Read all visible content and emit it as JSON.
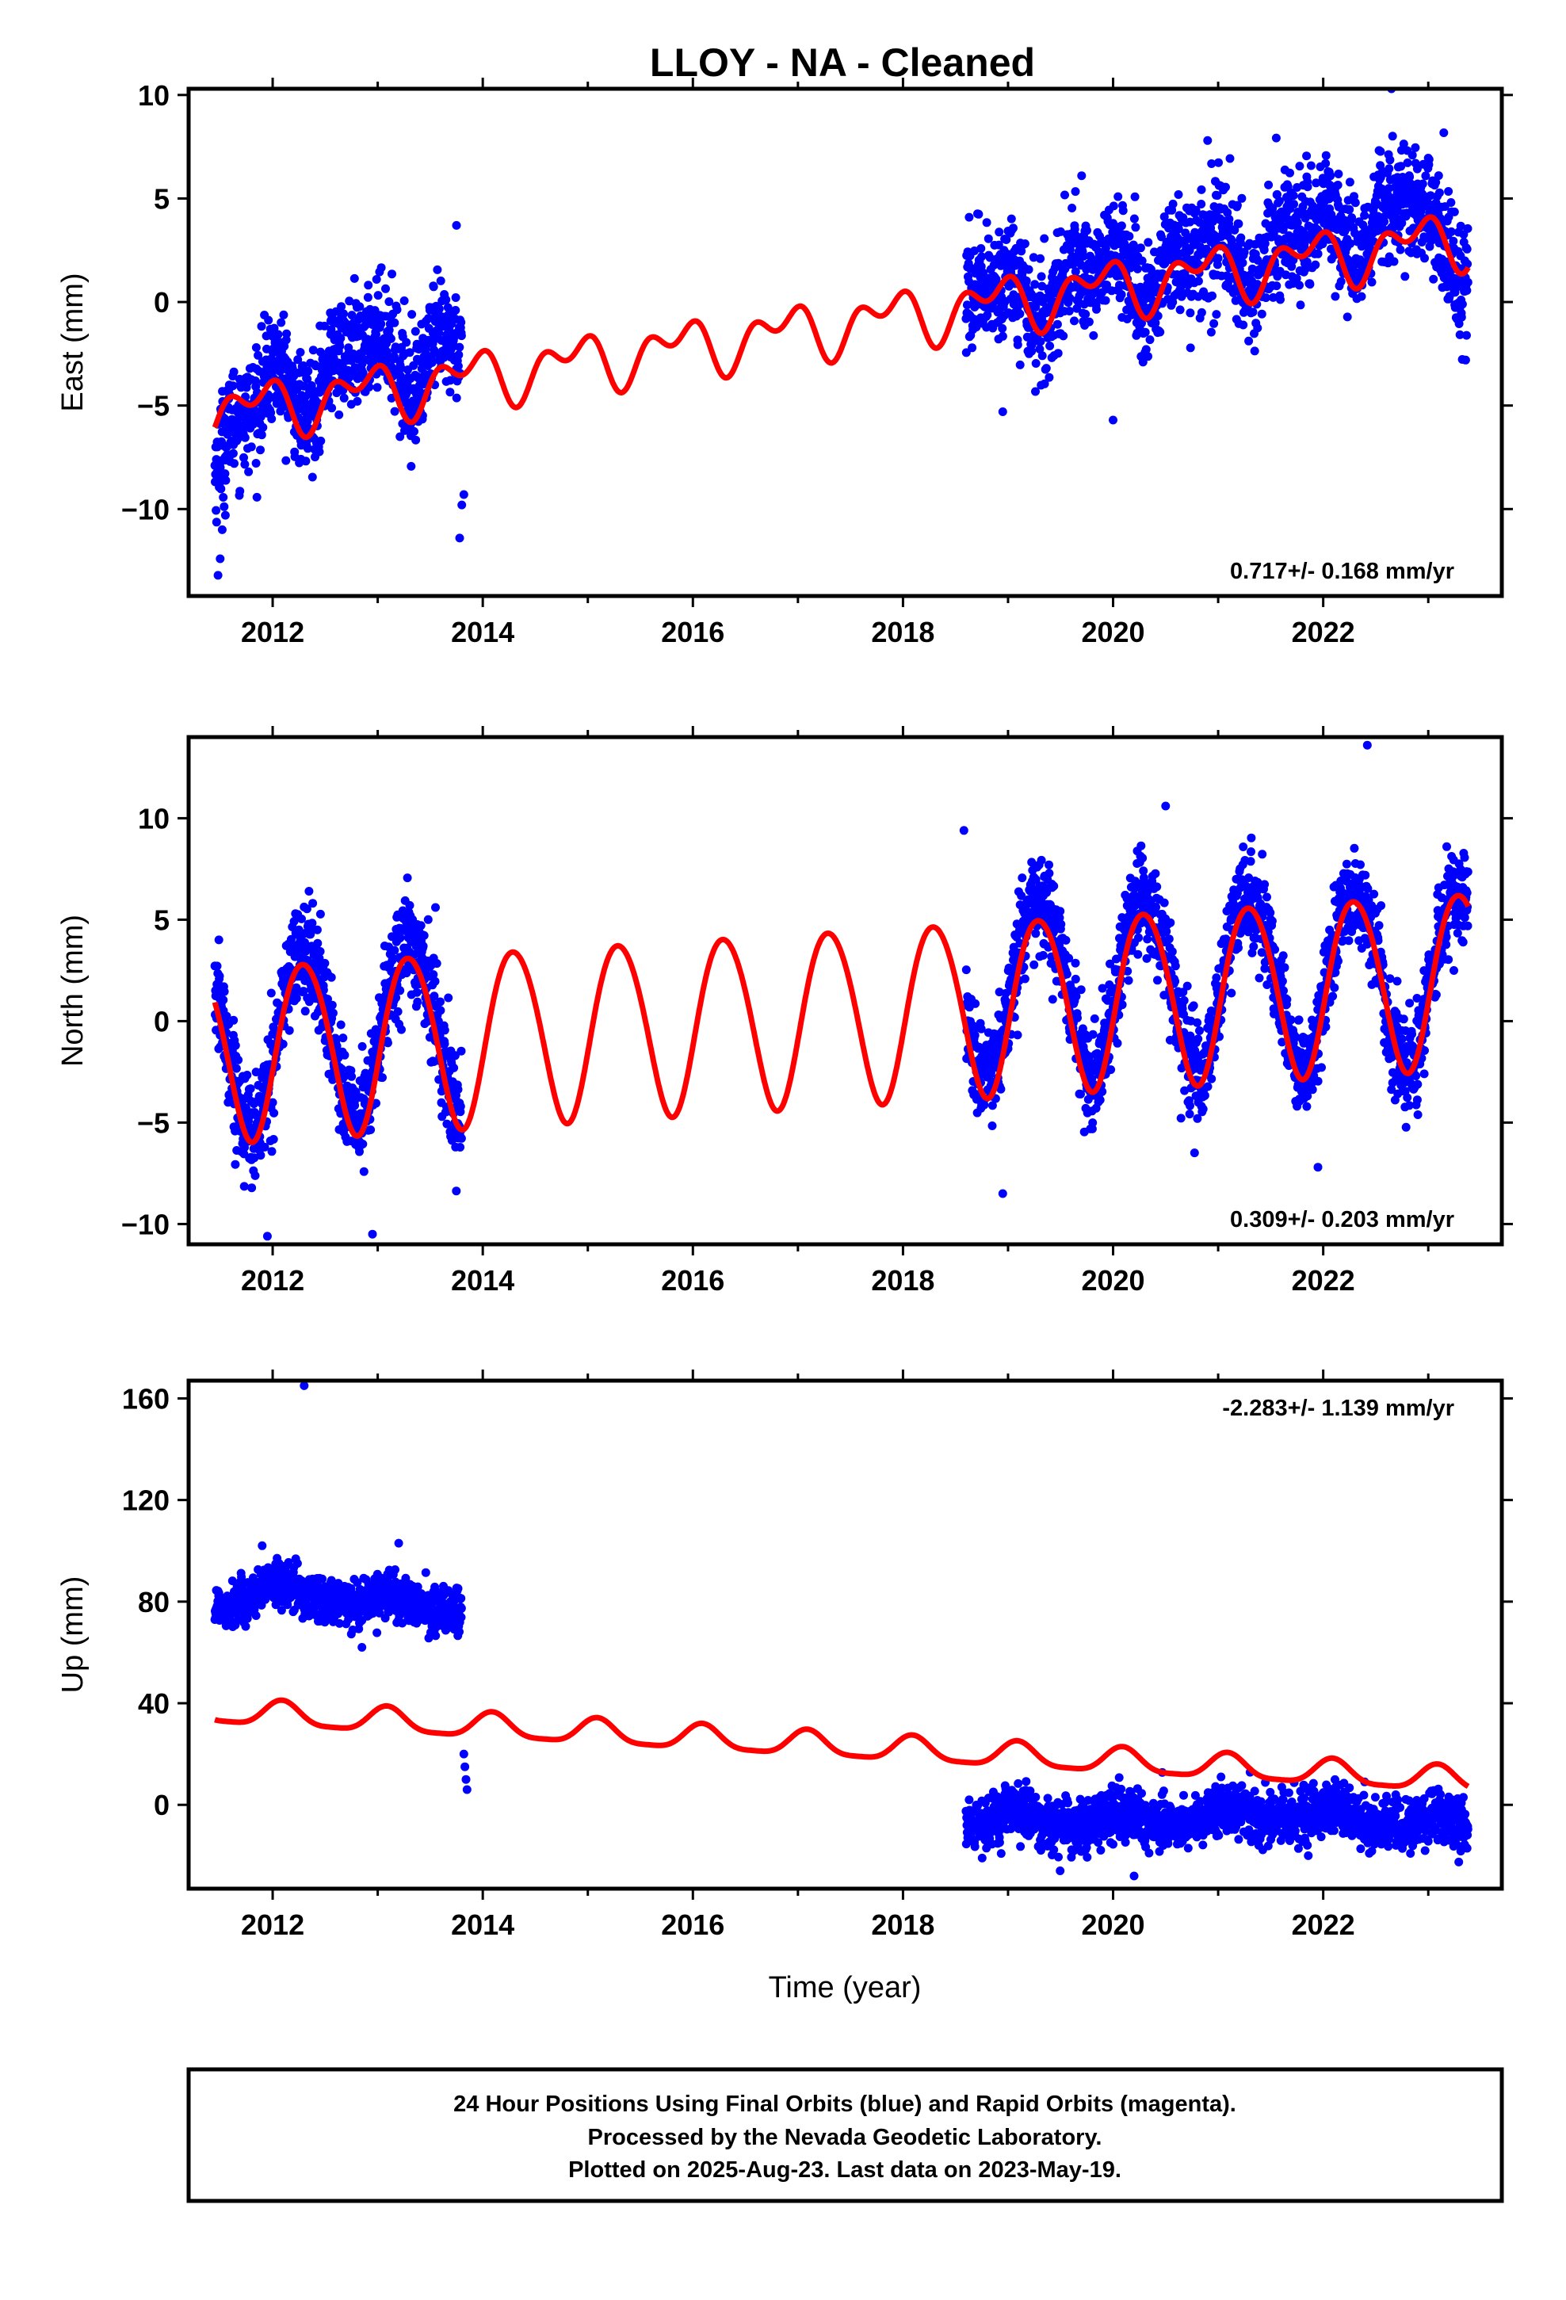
{
  "title": "LLOY  - NA - Cleaned",
  "xlabel": "Time (year)",
  "caption": {
    "line1": "24 Hour Positions Using Final Orbits (blue) and Rapid Orbits (magenta).",
    "line2": "Processed by the Nevada Geodetic Laboratory.",
    "line3": "Plotted on 2025-Aug-23. Last data on 2023-May-19."
  },
  "colors": {
    "observations": "#0000ff",
    "model": "#ff0000",
    "frame": "#000000"
  },
  "chart_data": [
    {
      "type": "scatter",
      "ylabel": "East (mm)",
      "xlim": [
        2011.2,
        2023.7
      ],
      "ylim": [
        -14.2,
        10.3
      ],
      "xticks": [
        2012,
        2014,
        2016,
        2018,
        2020,
        2022
      ],
      "yticks": [
        -10,
        -5,
        0,
        5,
        10
      ],
      "grid": false,
      "rate_label": "0.717+/- 0.168 mm/yr",
      "rate_position": "bottom-right",
      "observation_segments": [
        {
          "start": 2011.45,
          "end": 2013.8,
          "trend": [
            [
              2011.45,
              -7.5
            ],
            [
              2012.0,
              -4.3
            ],
            [
              2013.0,
              -2.5
            ],
            [
              2013.8,
              -2.3
            ]
          ],
          "scatter_mm": 1.3
        },
        {
          "start": 2018.6,
          "end": 2023.38,
          "trend": [
            [
              2018.6,
              0.0
            ],
            [
              2020.0,
              1.3
            ],
            [
              2021.5,
              2.6
            ],
            [
              2022.7,
              4.5
            ],
            [
              2023.38,
              2.3
            ]
          ],
          "scatter_mm": 1.4
        }
      ],
      "outliers": [
        [
          2011.48,
          -13.2
        ],
        [
          2011.5,
          -12.4
        ],
        [
          2011.52,
          -11.0
        ],
        [
          2011.55,
          -10.3
        ],
        [
          2013.78,
          -11.4
        ],
        [
          2013.8,
          -9.8
        ],
        [
          2013.82,
          -9.3
        ],
        [
          2013.75,
          3.7
        ],
        [
          2020.0,
          -5.7
        ],
        [
          2022.65,
          10.3
        ],
        [
          2018.95,
          -5.3
        ],
        [
          2019.7,
          6.1
        ],
        [
          2020.9,
          7.8
        ]
      ],
      "model": {
        "intercept_2017": -1.4,
        "rate": 0.717,
        "annual_amp": 1.0,
        "annual_phase": 2.5,
        "semiannual_amp": 0.8,
        "semiannual_phase": 0.8
      }
    },
    {
      "type": "scatter",
      "ylabel": "North (mm)",
      "xlim": [
        2011.2,
        2023.7
      ],
      "ylim": [
        -11.0,
        14.0
      ],
      "xticks": [
        2012,
        2014,
        2016,
        2018,
        2020,
        2022
      ],
      "yticks": [
        -10,
        -5,
        0,
        5,
        10
      ],
      "grid": false,
      "rate_label": "0.309+/- 0.203 mm/yr",
      "rate_position": "bottom-right",
      "observation_segments": [
        {
          "start": 2011.45,
          "end": 2013.8,
          "trend": [
            [
              2011.45,
              -1.0
            ],
            [
              2013.8,
              0.0
            ]
          ],
          "scatter_mm": 1.3
        },
        {
          "start": 2018.6,
          "end": 2023.38,
          "trend": [
            [
              2018.6,
              1.6
            ],
            [
              2023.38,
              2.3
            ]
          ],
          "scatter_mm": 1.2
        }
      ],
      "outliers": [
        [
          2011.95,
          -10.6
        ],
        [
          2012.95,
          -10.5
        ],
        [
          2013.55,
          5.6
        ],
        [
          2018.95,
          -8.5
        ],
        [
          2021.95,
          -7.2
        ],
        [
          2022.42,
          13.6
        ],
        [
          2020.5,
          10.6
        ],
        [
          2018.58,
          9.4
        ]
      ],
      "model": {
        "intercept_2017": 0.2,
        "rate": 0.309,
        "annual_amp": 4.3,
        "annual_phase": -0.3,
        "semiannual_amp": 0.3,
        "semiannual_phase": 0.5
      }
    },
    {
      "type": "scatter",
      "ylabel": "Up (mm)",
      "xlabel": "Time (year)",
      "xlim": [
        2011.2,
        2023.7
      ],
      "ylim": [
        -33,
        167
      ],
      "xticks": [
        2012,
        2014,
        2016,
        2018,
        2020,
        2022
      ],
      "yticks": [
        0,
        40,
        80,
        120,
        160
      ],
      "grid": false,
      "rate_label": "-2.283+/- 1.139 mm/yr",
      "rate_position": "top-right",
      "observation_segments": [
        {
          "start": 2011.45,
          "end": 2013.8,
          "trend": [
            [
              2011.45,
              80.0
            ],
            [
              2012.0,
              84.0
            ],
            [
              2013.0,
              80.0
            ],
            [
              2013.8,
              78.0
            ]
          ],
          "scatter_mm": 4.5
        },
        {
          "start": 2018.6,
          "end": 2023.38,
          "trend": [
            [
              2018.6,
              -6.0
            ],
            [
              2020.0,
              -7.0
            ],
            [
              2021.5,
              -3.0
            ],
            [
              2023.38,
              -8.0
            ]
          ],
          "scatter_mm": 5.0
        }
      ],
      "outliers": [
        [
          2012.3,
          165.0
        ],
        [
          2013.82,
          20.0
        ],
        [
          2013.83,
          15.0
        ],
        [
          2013.84,
          10.0
        ],
        [
          2013.85,
          6.0
        ],
        [
          2020.2,
          -28.0
        ],
        [
          2013.2,
          103.0
        ],
        [
          2011.9,
          102.0
        ],
        [
          2012.85,
          62.0
        ]
      ],
      "model": {
        "intercept_2017": 24.0,
        "rate": -2.283,
        "annual_amp": 4.8,
        "annual_phase": 1.0,
        "semiannual_amp": 1.2,
        "semiannual_phase": 0.5
      }
    }
  ]
}
